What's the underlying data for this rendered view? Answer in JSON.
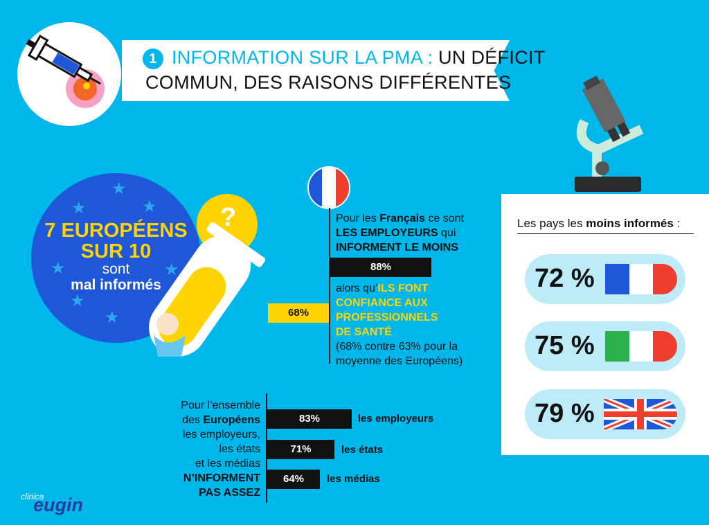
{
  "header": {
    "number": "1",
    "title_accent": "INFORMATION SUR LA PMA :",
    "title_rest": " UN DÉFICIT",
    "title_line2": "COMMUN, DES RAISONS DIFFÉRENTES"
  },
  "europe": {
    "line1": "7 EUROPÉENS",
    "line2": "SUR 10",
    "line3": "sont",
    "line4": "mal informés"
  },
  "question_mark": "?",
  "france": {
    "t1": "Pour les ",
    "t2": "Français",
    "t3": " ce sont",
    "t4": "LES EMPLOYEURS",
    "t5": " qui",
    "t6": "INFORMENT LE MOINS",
    "bar_employeurs": "88%",
    "bar_employeurs_value": 88,
    "t7": "alors qu’",
    "t8": "ILS FONT",
    "t9": "CONFIANCE AUX",
    "t10": "PROFESSIONNELS",
    "t11": "DE SANTÉ",
    "t12": "(68% contre 63% pour la",
    "t13": "moyenne des Européens)",
    "bar_sante": "68%",
    "bar_sante_value": 68
  },
  "europeans": {
    "l1": "Pour l’ensemble",
    "l2a": "des ",
    "l2b": "Européens",
    "l3": "les employeurs,",
    "l4": "les états",
    "l5": "et les médias",
    "l6": "N’INFORMENT",
    "l7": "PAS ASSEZ",
    "bars": [
      {
        "value_label": "83%",
        "value": 83,
        "label": "les employeurs"
      },
      {
        "value_label": "71%",
        "value": 71,
        "label": "les états"
      },
      {
        "value_label": "64%",
        "value": 64,
        "label": "les médias"
      }
    ]
  },
  "panel": {
    "title_a": "Les pays les ",
    "title_b": "moins informés",
    "title_c": " :",
    "rows": [
      {
        "pct": "72 %",
        "country_flag": "france-flag",
        "value": 72
      },
      {
        "pct": "75 %",
        "country_flag": "italy-flag",
        "value": 75
      },
      {
        "pct": "79 %",
        "country_flag": "uk-flag",
        "value": 79
      }
    ]
  },
  "logo": {
    "small": "clinica",
    "big": "eugin"
  },
  "colors": {
    "background": "#00B7EB",
    "eu_blue": "#1E58D8",
    "yellow": "#FFD400",
    "pill": "#BDEBF7"
  }
}
